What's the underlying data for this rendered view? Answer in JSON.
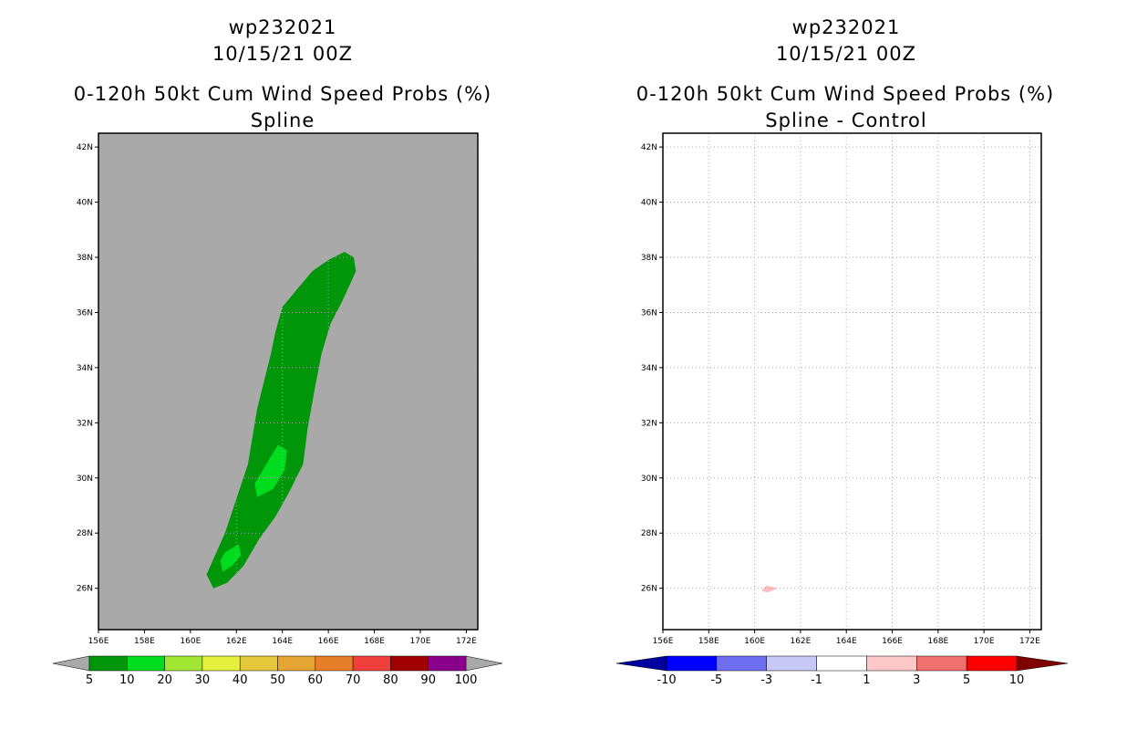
{
  "chart_data": [
    {
      "type": "filled-contour-map",
      "storm_id": "wp232021",
      "datetime": "10/15/21 00Z",
      "title": "0-120h 50kt Cum Wind Speed Probs (%)",
      "subtitle": "Spline",
      "xlim": [
        156,
        172.5
      ],
      "ylim": [
        24.5,
        42.5
      ],
      "x_ticks": [
        156,
        158,
        160,
        162,
        164,
        166,
        168,
        170,
        172
      ],
      "x_tick_labels": [
        "156E",
        "158E",
        "160E",
        "162E",
        "164E",
        "166E",
        "168E",
        "170E",
        "172E"
      ],
      "y_ticks": [
        26,
        28,
        30,
        32,
        34,
        36,
        38,
        40,
        42
      ],
      "y_tick_labels": [
        "26N",
        "28N",
        "30N",
        "32N",
        "34N",
        "36N",
        "38N",
        "40N",
        "42N"
      ],
      "background_color": "#a9a9a9",
      "grid": "dotted",
      "regions": [
        {
          "level": "5-10",
          "color": "#00960a",
          "points": [
            [
              161.0,
              26.0
            ],
            [
              160.7,
              26.5
            ],
            [
              161.5,
              28.0
            ],
            [
              161.9,
              29.0
            ],
            [
              162.5,
              30.5
            ],
            [
              162.9,
              32.5
            ],
            [
              163.2,
              33.5
            ],
            [
              163.5,
              34.5
            ],
            [
              163.7,
              35.3
            ],
            [
              164.0,
              36.2
            ],
            [
              164.6,
              36.8
            ],
            [
              165.3,
              37.5
            ],
            [
              166.0,
              37.9
            ],
            [
              166.7,
              38.2
            ],
            [
              167.1,
              38.0
            ],
            [
              167.2,
              37.5
            ],
            [
              166.6,
              36.4
            ],
            [
              166.1,
              35.6
            ],
            [
              165.7,
              34.5
            ],
            [
              165.4,
              33.2
            ],
            [
              165.1,
              31.8
            ],
            [
              164.9,
              30.5
            ],
            [
              164.3,
              29.5
            ],
            [
              163.7,
              28.6
            ],
            [
              163.0,
              27.8
            ],
            [
              162.3,
              26.8
            ],
            [
              161.6,
              26.2
            ]
          ]
        },
        {
          "level": "10-20",
          "color": "#00dc1e",
          "points": [
            [
              162.9,
              29.3
            ],
            [
              162.8,
              29.8
            ],
            [
              163.3,
              30.5
            ],
            [
              163.8,
              31.2
            ],
            [
              164.2,
              31.0
            ],
            [
              164.1,
              30.3
            ],
            [
              163.6,
              29.6
            ]
          ]
        },
        {
          "level": "10-20",
          "color": "#00dc1e",
          "points": [
            [
              161.4,
              26.6
            ],
            [
              161.3,
              27.0
            ],
            [
              161.5,
              27.3
            ],
            [
              162.1,
              27.6
            ],
            [
              162.2,
              27.2
            ],
            [
              161.8,
              26.8
            ]
          ]
        }
      ],
      "colorbar": {
        "labels": [
          "5",
          "10",
          "20",
          "30",
          "40",
          "50",
          "60",
          "70",
          "80",
          "90",
          "100"
        ],
        "colors": [
          "#00960a",
          "#00dc1e",
          "#a0e632",
          "#e6f03c",
          "#e6c83c",
          "#e6a532",
          "#e67f28",
          "#f0403c",
          "#a00000",
          "#8b008b",
          "#7a00e0"
        ],
        "arrow_color": "#a9a9a9"
      }
    },
    {
      "type": "filled-contour-map",
      "storm_id": "wp232021",
      "datetime": "10/15/21 00Z",
      "title": "0-120h 50kt Cum Wind Speed Probs (%)",
      "subtitle": "Spline - Control",
      "xlim": [
        156,
        172.5
      ],
      "ylim": [
        24.5,
        42.5
      ],
      "x_ticks": [
        156,
        158,
        160,
        162,
        164,
        166,
        168,
        170,
        172
      ],
      "x_tick_labels": [
        "156E",
        "158E",
        "160E",
        "162E",
        "164E",
        "166E",
        "168E",
        "170E",
        "172E"
      ],
      "y_ticks": [
        26,
        28,
        30,
        32,
        34,
        36,
        38,
        40,
        42
      ],
      "y_tick_labels": [
        "26N",
        "28N",
        "30N",
        "32N",
        "34N",
        "36N",
        "38N",
        "40N",
        "42N"
      ],
      "background_color": "#ffffff",
      "grid": "dotted",
      "regions": [
        {
          "level": "1-3",
          "color": "#ffbebe",
          "points": [
            [
              160.3,
              25.9
            ],
            [
              160.5,
              26.1
            ],
            [
              161.0,
              26.0
            ],
            [
              160.6,
              25.85
            ]
          ]
        }
      ],
      "colorbar": {
        "labels": [
          "-10",
          "-5",
          "-3",
          "-1",
          "1",
          "3",
          "5",
          "10"
        ],
        "colors": [
          "#0000a0",
          "#0000ff",
          "#6e6ef0",
          "#c8c8f5",
          "#ffffff",
          "#ffc8c8",
          "#f07070",
          "#ff0000",
          "#800000"
        ],
        "arrow_left_color": "#0000a0",
        "arrow_right_color": "#800000"
      }
    }
  ]
}
